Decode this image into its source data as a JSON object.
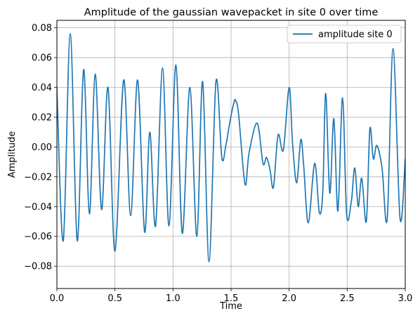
{
  "chart_data": {
    "type": "line",
    "title": "Amplitude of the gaussian wavepacket in site 0 over time",
    "xlabel": "Time",
    "ylabel": "Amplitude",
    "xlim": [
      0.0,
      3.0
    ],
    "ylim": [
      -0.095,
      0.085
    ],
    "xticks": [
      0.0,
      0.5,
      1.0,
      1.5,
      2.0,
      2.5,
      3.0
    ],
    "xtick_labels": [
      "0.0",
      "0.5",
      "1.0",
      "1.5",
      "2.0",
      "2.5",
      "3.0"
    ],
    "yticks": [
      -0.08,
      -0.06,
      -0.04,
      -0.02,
      0.0,
      0.02,
      0.04,
      0.06,
      0.08
    ],
    "ytick_labels": [
      "−0.08",
      "−0.06",
      "−0.04",
      "−0.02",
      "0.00",
      "0.02",
      "0.04",
      "0.06",
      "0.08"
    ],
    "grid": true,
    "legend_position": "top-right",
    "series": [
      {
        "name": "amplitude site 0",
        "color": "#1f77b4",
        "x": [
          0.0,
          0.055,
          0.115,
          0.175,
          0.23,
          0.28,
          0.33,
          0.385,
          0.44,
          0.5,
          0.575,
          0.635,
          0.695,
          0.755,
          0.8,
          0.85,
          0.91,
          0.965,
          1.025,
          1.08,
          1.145,
          1.205,
          1.255,
          1.31,
          1.37,
          1.42,
          1.455,
          1.49,
          1.525,
          1.54,
          1.565,
          1.62,
          1.655,
          1.725,
          1.775,
          1.805,
          1.835,
          1.865,
          1.905,
          1.95,
          2.0,
          2.03,
          2.065,
          2.1,
          2.125,
          2.165,
          2.22,
          2.26,
          2.29,
          2.315,
          2.35,
          2.385,
          2.42,
          2.46,
          2.495,
          2.535,
          2.565,
          2.595,
          2.625,
          2.665,
          2.695,
          2.725,
          2.755,
          2.8,
          2.845,
          2.895,
          2.955,
          3.0
        ],
        "y": [
          0.04,
          -0.063,
          0.076,
          -0.063,
          0.052,
          -0.045,
          0.049,
          -0.042,
          0.04,
          -0.07,
          0.045,
          -0.046,
          0.045,
          -0.057,
          0.01,
          -0.053,
          0.053,
          -0.053,
          0.055,
          -0.058,
          0.04,
          -0.06,
          0.044,
          -0.077,
          0.044,
          -0.007,
          0.001,
          0.017,
          0.03,
          0.031,
          0.022,
          -0.025,
          -0.004,
          0.016,
          -0.011,
          -0.007,
          -0.015,
          -0.027,
          0.008,
          -0.002,
          0.04,
          0.002,
          -0.024,
          0.005,
          -0.012,
          -0.051,
          -0.011,
          -0.044,
          -0.03,
          0.036,
          -0.031,
          0.019,
          -0.043,
          0.033,
          -0.045,
          -0.037,
          -0.014,
          -0.04,
          -0.021,
          -0.05,
          0.012,
          -0.008,
          0.001,
          -0.014,
          -0.048,
          0.066,
          -0.048,
          -0.008
        ]
      }
    ]
  }
}
